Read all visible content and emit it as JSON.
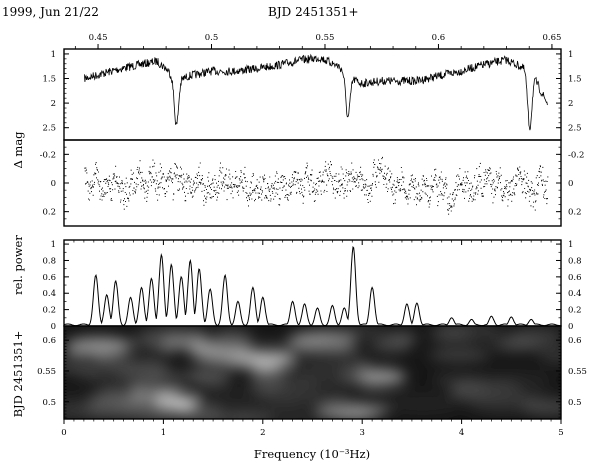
{
  "header": {
    "date_label": "1999, Jun 21/22",
    "bjd_label": "BJD 2451351+"
  },
  "chart_data": [
    {
      "type": "line",
      "panel": "light-curve",
      "ylabel": "",
      "top_axis_ticks": [
        "0.45",
        "0.5",
        "0.55",
        "0.6",
        "0.65"
      ],
      "top_axis_values": [
        0.45,
        0.5,
        0.55,
        0.6,
        0.65
      ],
      "xlim": [
        0.435,
        0.654
      ],
      "ylim": [
        2.75,
        0.9
      ],
      "y_ticks": [
        "1",
        "1.5",
        "2",
        "2.5"
      ],
      "y_values": [
        1,
        1.5,
        2,
        2.5
      ],
      "baseline_points": [
        [
          0.444,
          1.5
        ],
        [
          0.452,
          1.4
        ],
        [
          0.46,
          1.3
        ],
        [
          0.468,
          1.22
        ],
        [
          0.476,
          1.15
        ],
        [
          0.48,
          1.3
        ],
        [
          0.485,
          1.55
        ],
        [
          0.49,
          1.45
        ],
        [
          0.5,
          1.35
        ],
        [
          0.51,
          1.35
        ],
        [
          0.52,
          1.3
        ],
        [
          0.53,
          1.22
        ],
        [
          0.54,
          1.12
        ],
        [
          0.548,
          1.08
        ],
        [
          0.556,
          1.25
        ],
        [
          0.56,
          1.45
        ],
        [
          0.566,
          1.6
        ],
        [
          0.575,
          1.55
        ],
        [
          0.59,
          1.55
        ],
        [
          0.6,
          1.45
        ],
        [
          0.61,
          1.35
        ],
        [
          0.62,
          1.22
        ],
        [
          0.63,
          1.12
        ],
        [
          0.638,
          1.3
        ],
        [
          0.643,
          1.55
        ],
        [
          0.645,
          1.75
        ],
        [
          0.648,
          2.0
        ]
      ],
      "eclipses": [
        {
          "center": 0.4845,
          "depth_mag": 2.45
        },
        {
          "center": 0.5601,
          "depth_mag": 2.3
        },
        {
          "center": 0.6402,
          "depth_mag": 2.5
        }
      ]
    },
    {
      "type": "scatter",
      "panel": "residuals",
      "ylabel": "Δ mag",
      "xlim": [
        0.435,
        0.654
      ],
      "ylim": [
        0.3,
        -0.3
      ],
      "y_ticks": [
        "-0.2",
        "0",
        "0.2"
      ],
      "y_values": [
        -0.2,
        0,
        0.2
      ],
      "x_range": [
        0.444,
        0.648
      ],
      "scatter_amplitude": 0.15
    },
    {
      "type": "line",
      "panel": "power-spectrum",
      "ylabel": "rel. power",
      "xlim": [
        0,
        5
      ],
      "ylim": [
        0,
        1.05
      ],
      "y_ticks": [
        "0",
        "0.2",
        "0.4",
        "0.6",
        "0.8",
        "1"
      ],
      "y_values": [
        0,
        0.2,
        0.4,
        0.6,
        0.8,
        1
      ],
      "peaks": [
        {
          "x": 0.32,
          "y": 0.62
        },
        {
          "x": 0.43,
          "y": 0.38
        },
        {
          "x": 0.52,
          "y": 0.55
        },
        {
          "x": 0.67,
          "y": 0.35
        },
        {
          "x": 0.78,
          "y": 0.47
        },
        {
          "x": 0.88,
          "y": 0.58
        },
        {
          "x": 0.98,
          "y": 0.87
        },
        {
          "x": 1.08,
          "y": 0.75
        },
        {
          "x": 1.18,
          "y": 0.6
        },
        {
          "x": 1.27,
          "y": 0.8
        },
        {
          "x": 1.36,
          "y": 0.7
        },
        {
          "x": 1.47,
          "y": 0.45
        },
        {
          "x": 1.62,
          "y": 0.62
        },
        {
          "x": 1.75,
          "y": 0.3
        },
        {
          "x": 1.9,
          "y": 0.47
        },
        {
          "x": 2.0,
          "y": 0.35
        },
        {
          "x": 2.3,
          "y": 0.3
        },
        {
          "x": 2.42,
          "y": 0.27
        },
        {
          "x": 2.55,
          "y": 0.22
        },
        {
          "x": 2.7,
          "y": 0.25
        },
        {
          "x": 2.82,
          "y": 0.22
        },
        {
          "x": 2.91,
          "y": 0.97
        },
        {
          "x": 3.1,
          "y": 0.47
        },
        {
          "x": 3.45,
          "y": 0.27
        },
        {
          "x": 3.55,
          "y": 0.28
        },
        {
          "x": 3.9,
          "y": 0.1
        },
        {
          "x": 4.1,
          "y": 0.08
        },
        {
          "x": 4.3,
          "y": 0.12
        },
        {
          "x": 4.5,
          "y": 0.11
        },
        {
          "x": 4.7,
          "y": 0.08
        }
      ]
    },
    {
      "type": "heatmap",
      "panel": "dynamic-spectrum",
      "ylabel": "BJD 2451351+",
      "xlabel": "Frequency (10⁻³Hz)",
      "x_ticks": [
        "0",
        "1",
        "2",
        "3",
        "4",
        "5"
      ],
      "x_values": [
        0,
        1,
        2,
        3,
        4,
        5
      ],
      "xlim": [
        0,
        5
      ],
      "y_ticks": [
        "0.5",
        "0.55",
        "0.6"
      ],
      "y_values": [
        0.5,
        0.55,
        0.6
      ],
      "ylim": [
        0.472,
        0.623
      ],
      "bright_spots": [
        {
          "x": 1.0,
          "y": 0.497,
          "intensity": 1.0
        },
        {
          "x": 0.62,
          "y": 0.505,
          "intensity": 0.7
        },
        {
          "x": 1.95,
          "y": 0.567,
          "intensity": 0.8
        },
        {
          "x": 1.6,
          "y": 0.582,
          "intensity": 0.55
        },
        {
          "x": 0.35,
          "y": 0.59,
          "intensity": 0.5
        },
        {
          "x": 2.9,
          "y": 0.486,
          "intensity": 0.65
        },
        {
          "x": 3.1,
          "y": 0.54,
          "intensity": 0.5
        },
        {
          "x": 2.6,
          "y": 0.6,
          "intensity": 0.45
        },
        {
          "x": 4.25,
          "y": 0.52,
          "intensity": 0.35
        },
        {
          "x": 1.1,
          "y": 0.6,
          "intensity": 0.45
        }
      ]
    }
  ]
}
